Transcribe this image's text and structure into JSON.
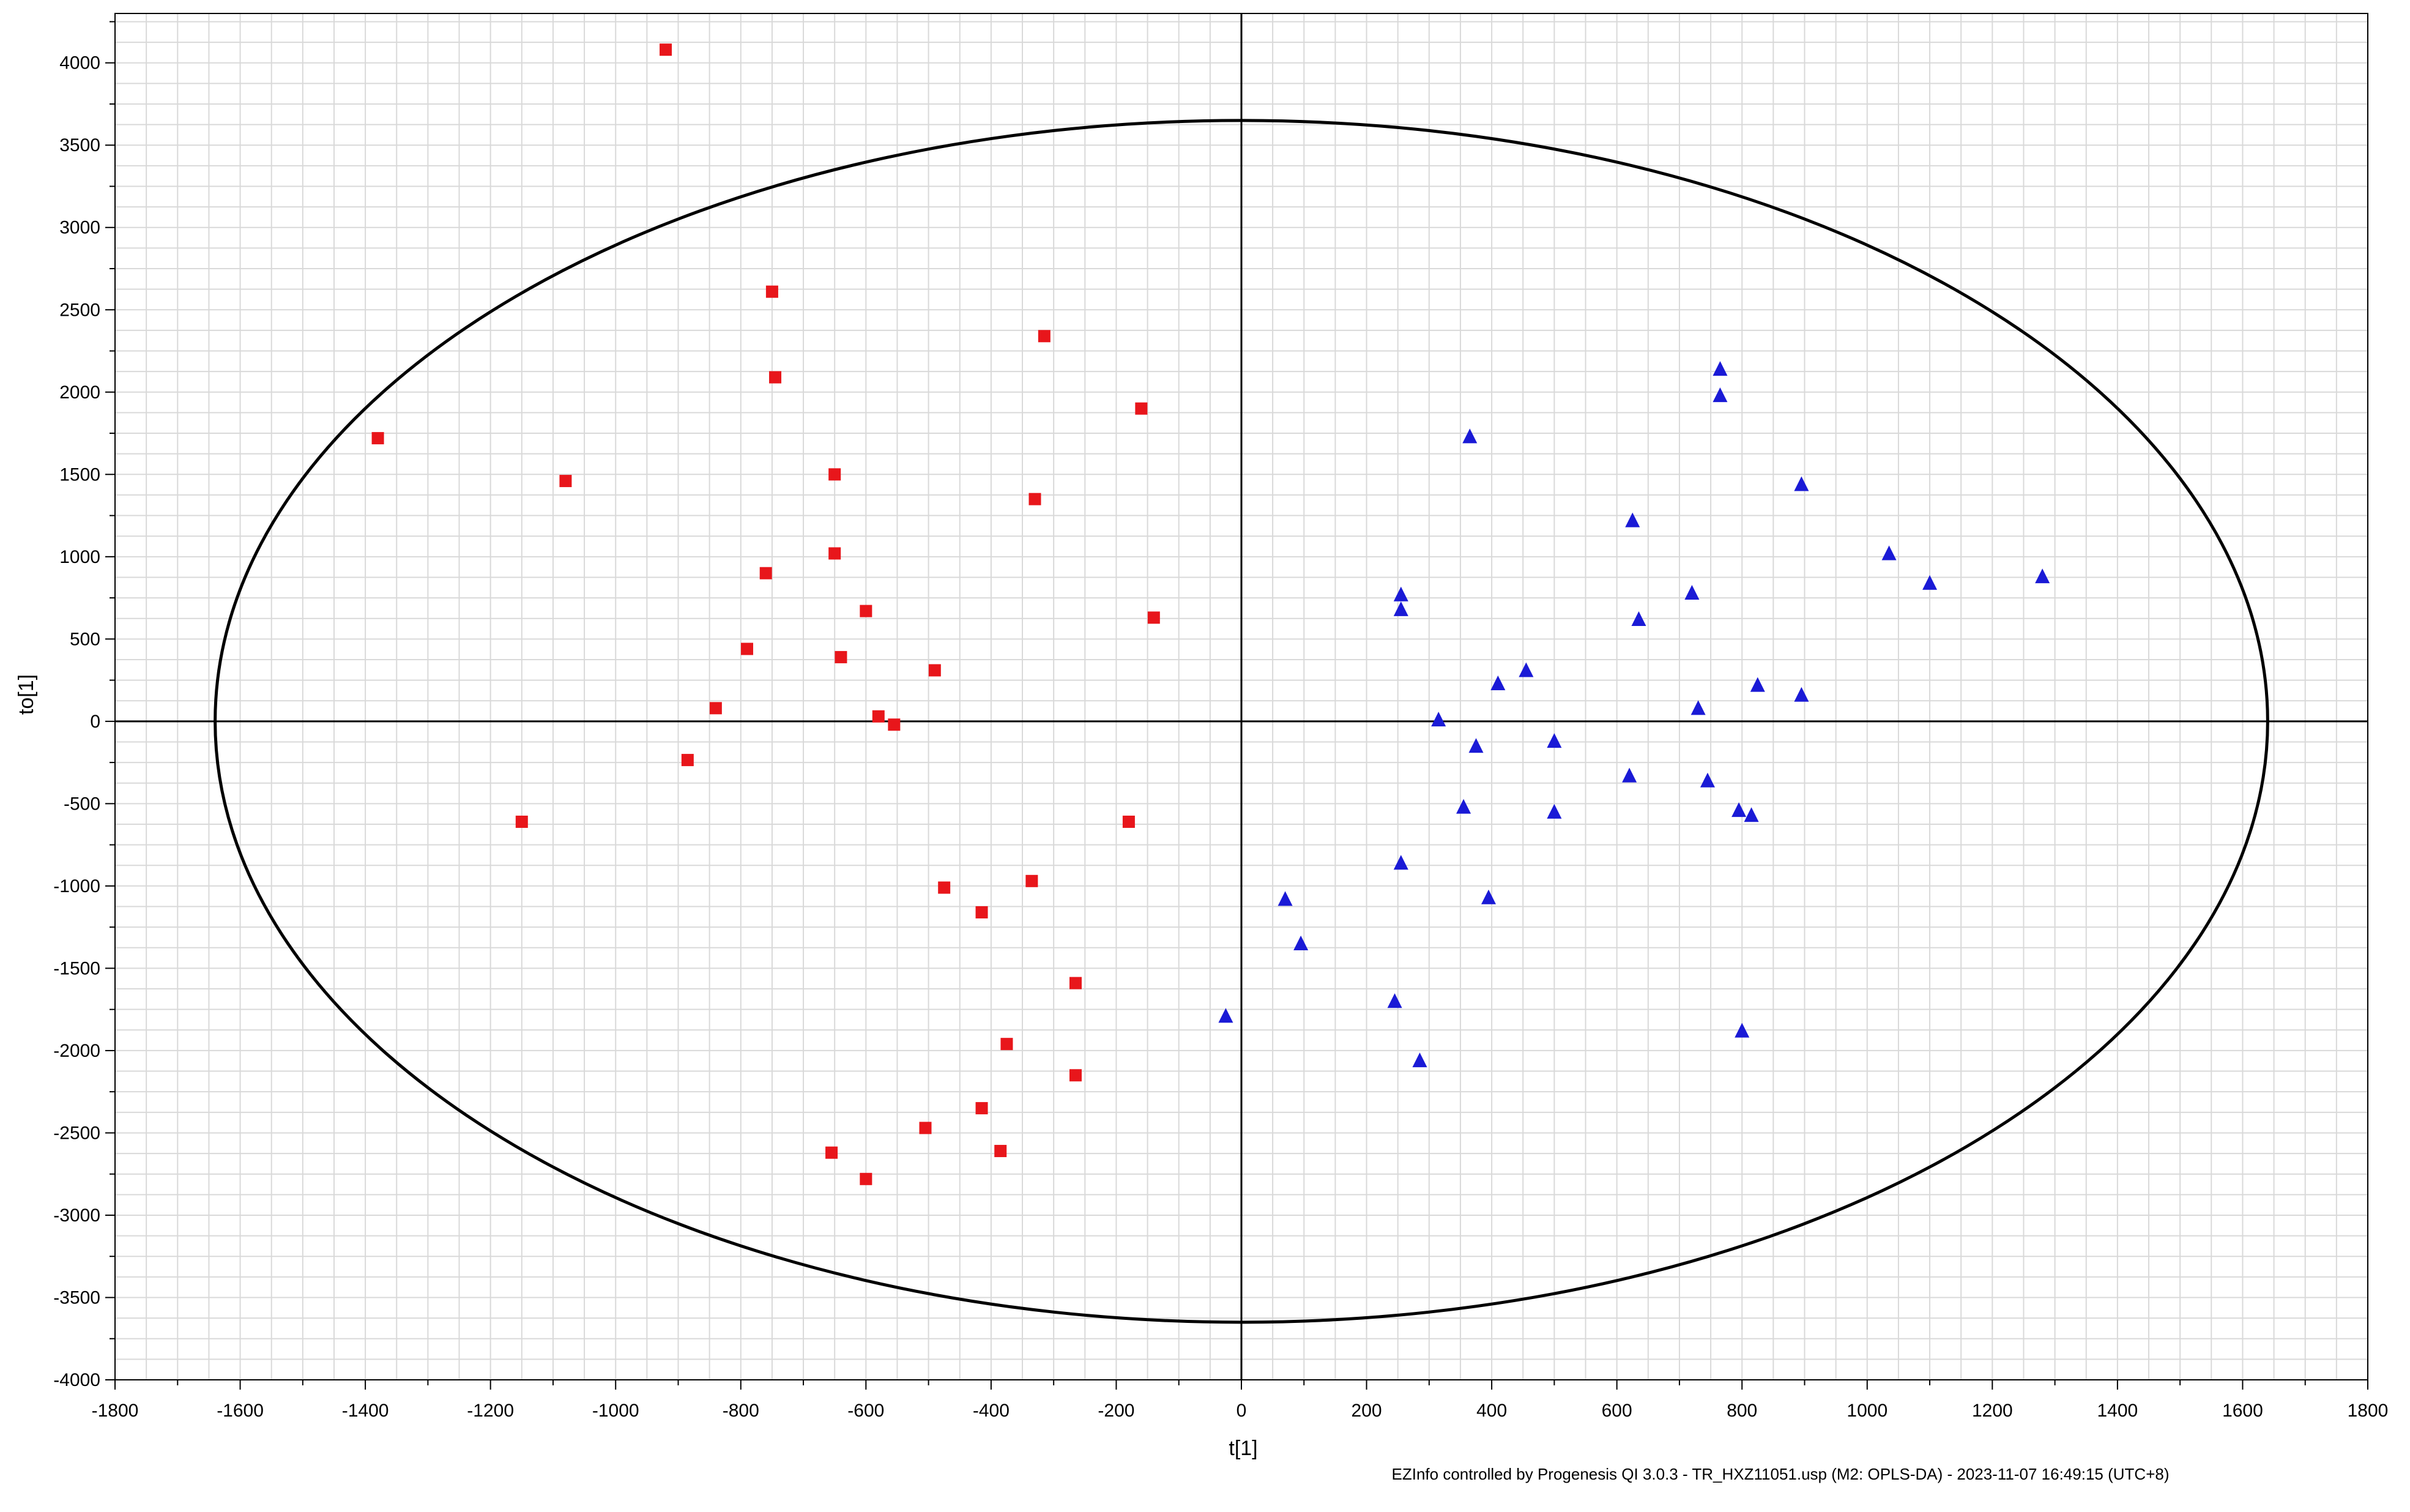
{
  "footer": "EZInfo controlled by Progenesis QI 3.0.3 - TR_HXZ11051.usp (M2: OPLS-DA) - 2023-11-07 16:49:15 (UTC+8)",
  "chart_data": {
    "type": "scatter",
    "xlabel": "t[1]",
    "ylabel": "to[1]",
    "xlim": [
      -1800,
      1800
    ],
    "ylim": [
      -4000,
      4300
    ],
    "xticks": [
      -1800,
      -1600,
      -1400,
      -1200,
      -1000,
      -800,
      -600,
      -400,
      -200,
      0,
      200,
      400,
      600,
      800,
      1000,
      1200,
      1400,
      1600,
      1800
    ],
    "yticks": [
      -4000,
      -3500,
      -3000,
      -2500,
      -2000,
      -1500,
      -1000,
      -500,
      0,
      500,
      1000,
      1500,
      2000,
      2500,
      3000,
      3500,
      4000
    ],
    "grid": true,
    "ellipse": {
      "rx": 1640,
      "ry": 3650
    },
    "colors": {
      "squares": "#e8161b",
      "triangles": "#1a1ad6"
    },
    "series": [
      {
        "marker": "square",
        "color": "#e8161b",
        "points": [
          [
            -920,
            4080
          ],
          [
            -750,
            2610
          ],
          [
            -745,
            2090
          ],
          [
            -315,
            2340
          ],
          [
            -160,
            1900
          ],
          [
            -1380,
            1720
          ],
          [
            -1080,
            1460
          ],
          [
            -650,
            1500
          ],
          [
            -330,
            1350
          ],
          [
            -650,
            1020
          ],
          [
            -760,
            900
          ],
          [
            -140,
            630
          ],
          [
            -600,
            670
          ],
          [
            -790,
            440
          ],
          [
            -640,
            390
          ],
          [
            -490,
            310
          ],
          [
            -840,
            80
          ],
          [
            -580,
            30
          ],
          [
            -555,
            -20
          ],
          [
            -885,
            -235
          ],
          [
            -1150,
            -610
          ],
          [
            -180,
            -610
          ],
          [
            -475,
            -1010
          ],
          [
            -335,
            -970
          ],
          [
            -415,
            -1160
          ],
          [
            -265,
            -1590
          ],
          [
            -375,
            -1960
          ],
          [
            -265,
            -2150
          ],
          [
            -415,
            -2350
          ],
          [
            -505,
            -2470
          ],
          [
            -385,
            -2610
          ],
          [
            -655,
            -2620
          ],
          [
            -600,
            -2780
          ]
        ]
      },
      {
        "marker": "triangle",
        "color": "#1a1ad6",
        "points": [
          [
            765,
            2140
          ],
          [
            765,
            1980
          ],
          [
            365,
            1730
          ],
          [
            895,
            1440
          ],
          [
            625,
            1220
          ],
          [
            1035,
            1020
          ],
          [
            1100,
            840
          ],
          [
            1280,
            880
          ],
          [
            255,
            770
          ],
          [
            720,
            780
          ],
          [
            255,
            680
          ],
          [
            635,
            620
          ],
          [
            455,
            310
          ],
          [
            410,
            230
          ],
          [
            825,
            220
          ],
          [
            895,
            160
          ],
          [
            730,
            80
          ],
          [
            315,
            10
          ],
          [
            500,
            -120
          ],
          [
            375,
            -150
          ],
          [
            620,
            -330
          ],
          [
            745,
            -360
          ],
          [
            355,
            -520
          ],
          [
            500,
            -550
          ],
          [
            795,
            -540
          ],
          [
            815,
            -570
          ],
          [
            255,
            -860
          ],
          [
            395,
            -1070
          ],
          [
            70,
            -1080
          ],
          [
            95,
            -1350
          ],
          [
            245,
            -1700
          ],
          [
            285,
            -2060
          ],
          [
            -25,
            -1790
          ],
          [
            800,
            -1880
          ]
        ]
      }
    ]
  }
}
